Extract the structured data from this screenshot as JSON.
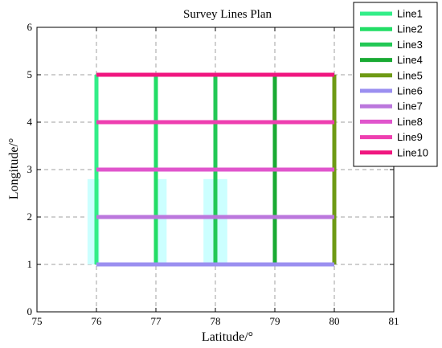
{
  "chart_data": {
    "type": "line",
    "title": "Survey Lines Plan",
    "xlabel": "Latitude/°",
    "ylabel": "Longitude/°",
    "xlim": [
      75,
      81
    ],
    "ylim": [
      0,
      6
    ],
    "xticks": [
      75,
      76,
      77,
      78,
      79,
      80,
      81
    ],
    "yticks": [
      0,
      1,
      2,
      3,
      4,
      5,
      6
    ],
    "grid": true,
    "legend_position": "top-right",
    "series": [
      {
        "name": "Line1",
        "color": "#33ee88",
        "x": [
          76,
          76
        ],
        "y": [
          1,
          5
        ]
      },
      {
        "name": "Line2",
        "color": "#22dd66",
        "x": [
          77,
          77
        ],
        "y": [
          1,
          5
        ]
      },
      {
        "name": "Line3",
        "color": "#22c855",
        "x": [
          78,
          78
        ],
        "y": [
          1,
          5
        ]
      },
      {
        "name": "Line4",
        "color": "#19aa33",
        "x": [
          79,
          79
        ],
        "y": [
          1,
          5
        ]
      },
      {
        "name": "Line5",
        "color": "#6e9a14",
        "x": [
          80,
          80
        ],
        "y": [
          1,
          5
        ]
      },
      {
        "name": "Line6",
        "color": "#9b8ff0",
        "x": [
          76,
          80
        ],
        "y": [
          1,
          1
        ]
      },
      {
        "name": "Line7",
        "color": "#bb77dd",
        "x": [
          76,
          80
        ],
        "y": [
          2,
          2
        ]
      },
      {
        "name": "Line8",
        "color": "#e055cc",
        "x": [
          76,
          80
        ],
        "y": [
          3,
          3
        ]
      },
      {
        "name": "Line9",
        "color": "#ee3fb0",
        "x": [
          76,
          80
        ],
        "y": [
          4,
          4
        ]
      },
      {
        "name": "Line10",
        "color": "#f0167f",
        "x": [
          76,
          80
        ],
        "y": [
          5,
          5
        ]
      }
    ],
    "shaded_regions": [
      {
        "color": "#ccffff",
        "x": [
          75.85,
          76.05
        ],
        "y": [
          1.0,
          2.8
        ]
      },
      {
        "color": "#ccffff",
        "x": [
          77.0,
          77.18
        ],
        "y": [
          1.0,
          2.8
        ]
      },
      {
        "color": "#ccffff",
        "x": [
          77.8,
          78.2
        ],
        "y": [
          1.0,
          2.8
        ]
      }
    ]
  }
}
